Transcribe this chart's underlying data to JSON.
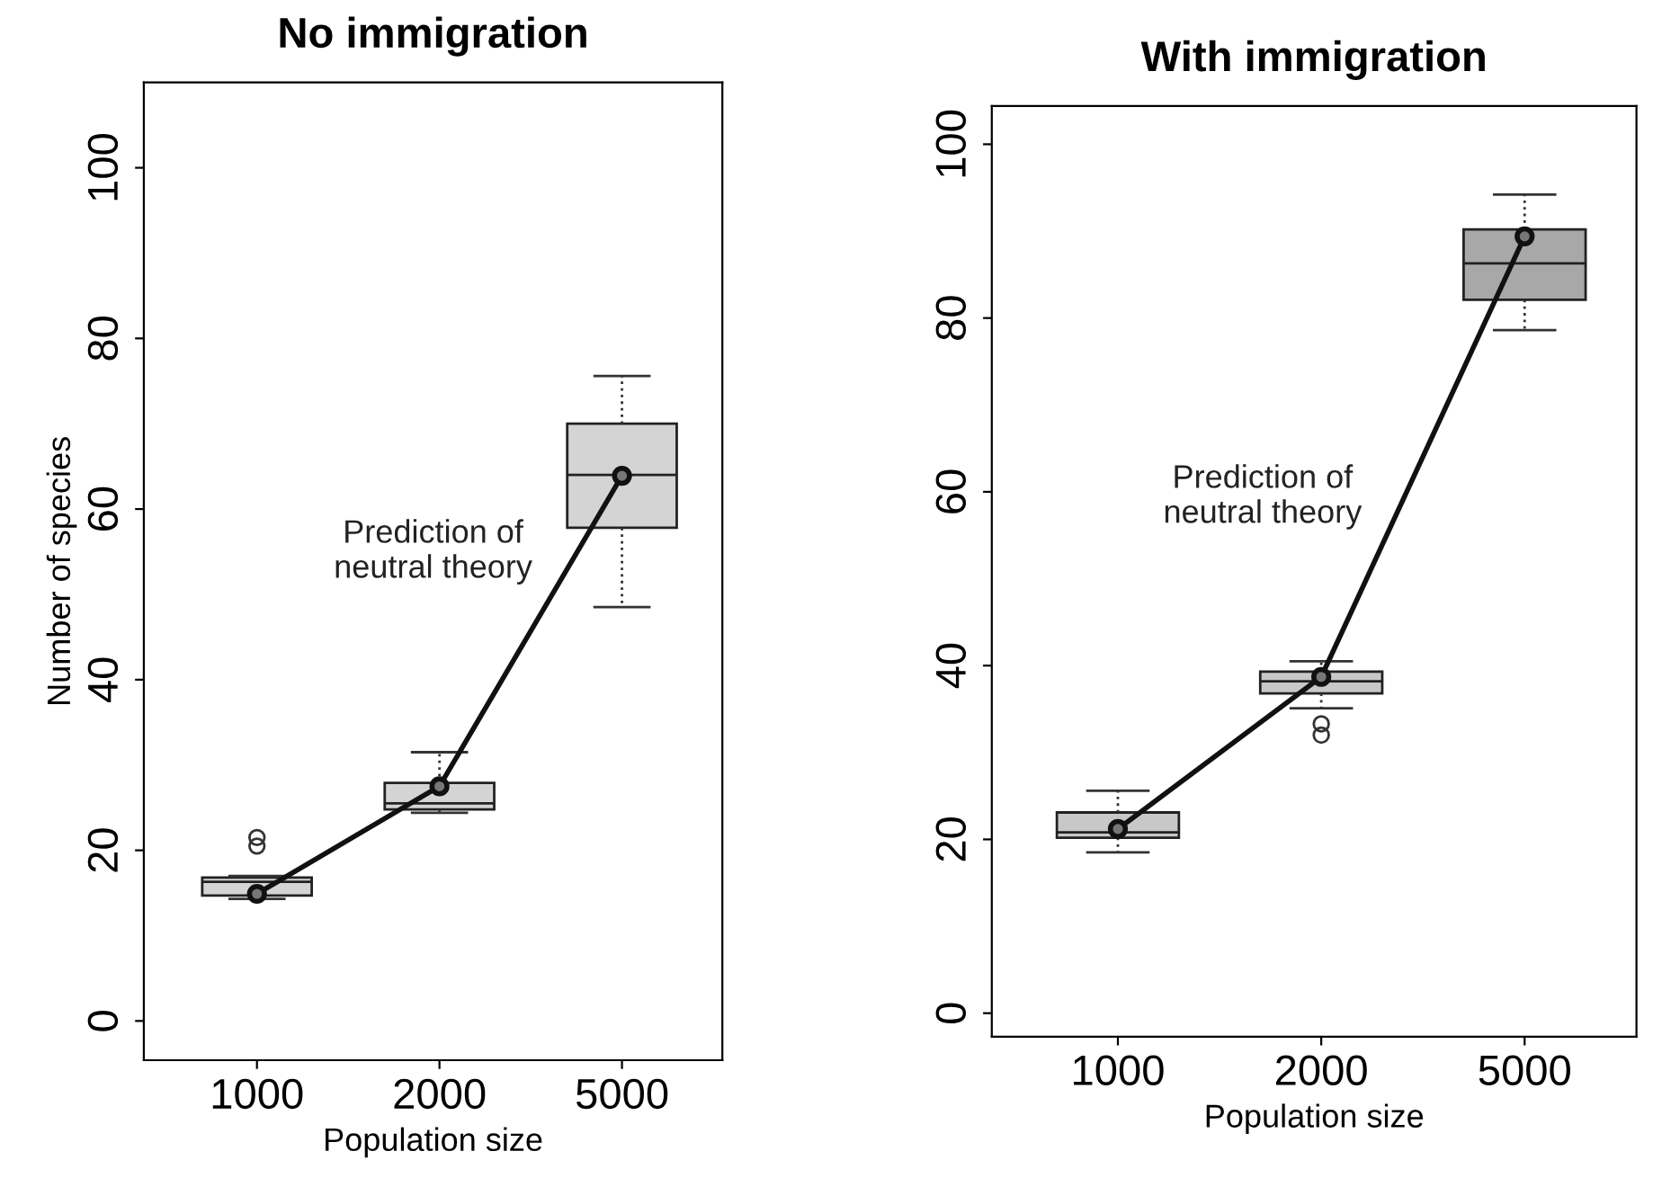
{
  "chart_data": [
    {
      "type": "box",
      "title": "No immigration",
      "xlabel": "Population size",
      "ylabel": "Number of species",
      "categories": [
        "1000",
        "2000",
        "5000"
      ],
      "ylim": [
        -4.6,
        110
      ],
      "yticks": [
        0,
        20,
        40,
        60,
        80,
        100
      ],
      "grid": false,
      "annotations": [
        "Prediction of\nneutral theory"
      ],
      "series": [
        {
          "colors": [
            "#d4d4d4",
            "#d4d4d4",
            "#d4d4d4"
          ],
          "boxes": [
            {
              "low": 14.3,
              "q1": 14.7,
              "median": 16.3,
              "q3": 16.8,
              "high": 17,
              "outliers": [
                20.5,
                21.5
              ]
            },
            {
              "low": 24.4,
              "q1": 24.8,
              "median": 25.5,
              "q3": 27.9,
              "high": 31.5
            },
            {
              "low": 48.5,
              "q1": 57.8,
              "median": 64,
              "q3": 70,
              "high": 75.6
            }
          ]
        },
        {
          "type": "line",
          "color": "#111111",
          "marker": "circle",
          "values": [
            14.9,
            27.5,
            63.9
          ]
        }
      ]
    },
    {
      "type": "box",
      "title": "With immigration",
      "xlabel": "Population size",
      "categories": [
        "1000",
        "2000",
        "5000"
      ],
      "ylim": [
        -2.7,
        104.4
      ],
      "yticks": [
        0,
        20,
        40,
        60,
        80,
        100
      ],
      "grid": false,
      "annotations": [
        "Prediction of\nneutral theory"
      ],
      "series": [
        {
          "colors": [
            "#c8c8c8",
            "#c8c8c8",
            "#a8a8a8"
          ],
          "boxes": [
            {
              "low": 18.5,
              "q1": 20.2,
              "median": 20.8,
              "q3": 23.1,
              "high": 25.6
            },
            {
              "low": 35.1,
              "q1": 36.8,
              "median": 38.2,
              "q3": 39.3,
              "high": 40.5,
              "outliers": [
                33.3,
                32
              ]
            },
            {
              "low": 78.6,
              "q1": 82.1,
              "median": 86.3,
              "q3": 90.2,
              "high": 94.2
            }
          ]
        },
        {
          "type": "line",
          "color": "#111111",
          "marker": "circle",
          "values": [
            21.2,
            38.7,
            89.4
          ]
        }
      ]
    }
  ]
}
